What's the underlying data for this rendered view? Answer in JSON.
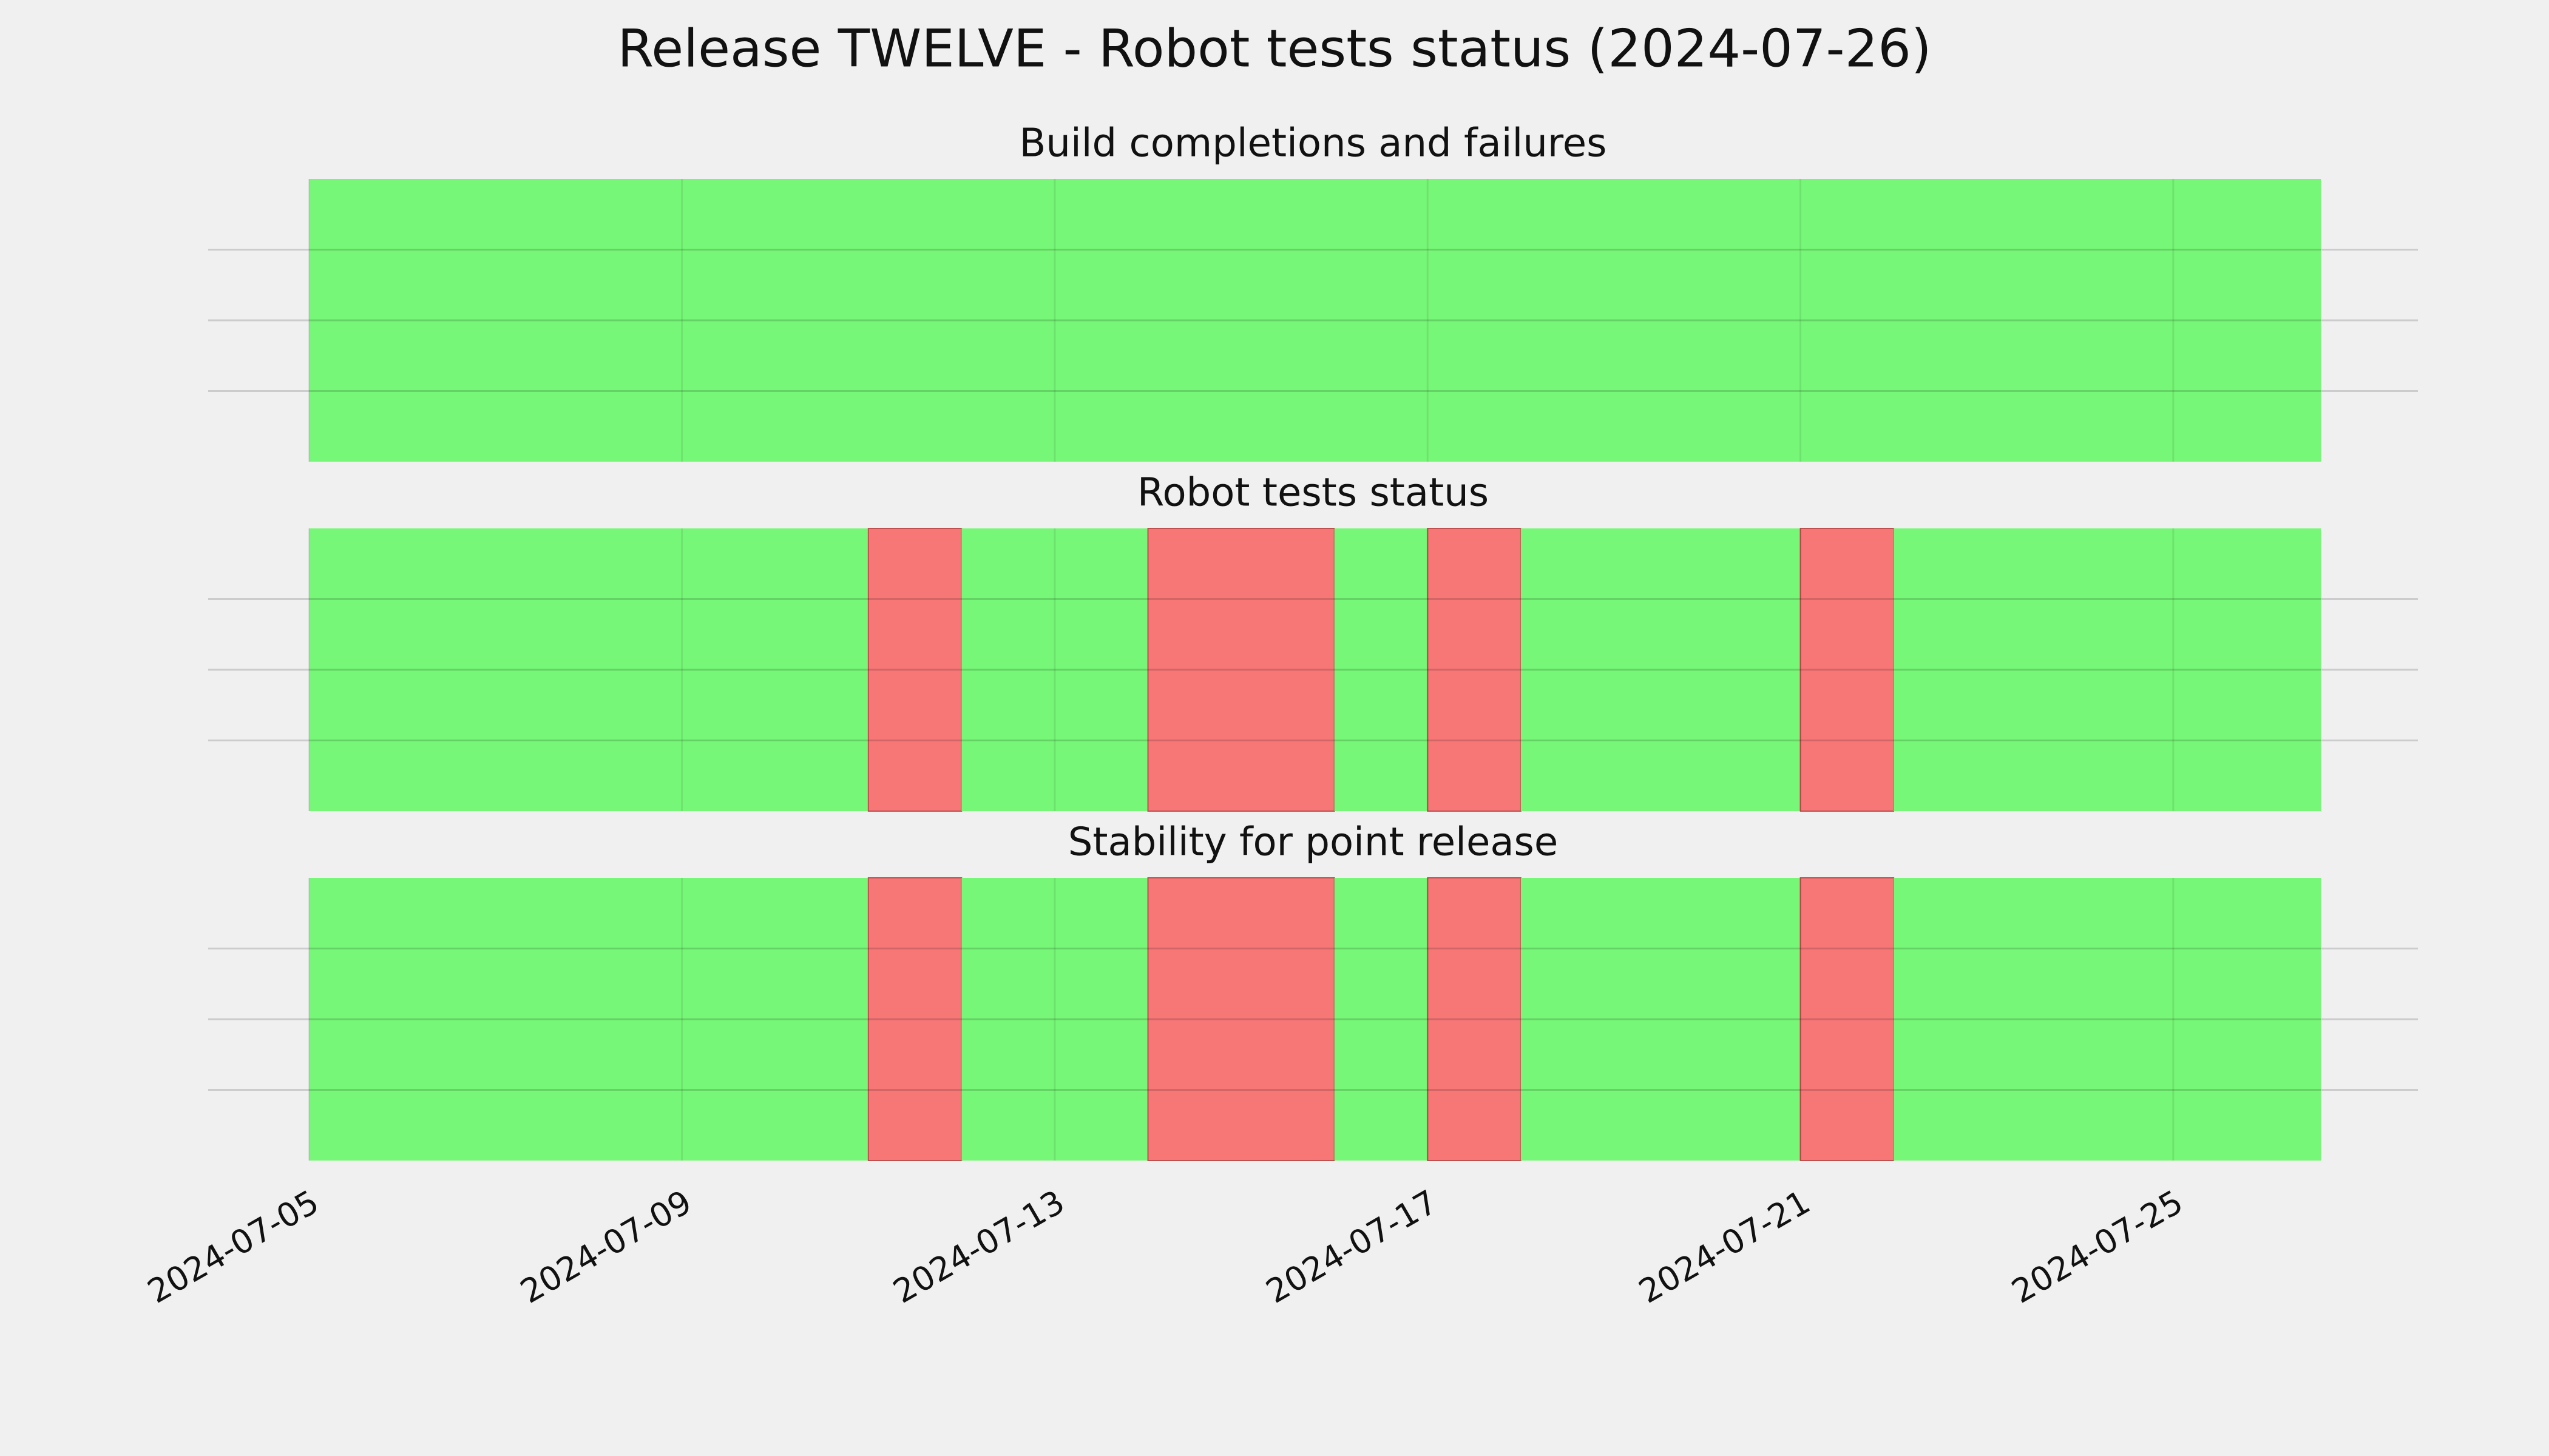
{
  "title": "Release TWELVE - Robot tests status (2024-07-26)",
  "chart_data": [
    {
      "type": "timeline",
      "title": "Build completions and failures",
      "bins": [
        "2024-07-05",
        "2024-07-26T14:00:00Z"
      ],
      "status": [
        "pass"
      ],
      "colors": {
        "pass": "#77f777",
        "fail": "#f77777"
      },
      "xlim": [
        "2024-07-03T22:00:00Z",
        "2024-07-27T15:00:00Z"
      ],
      "ylim": [
        0,
        1
      ],
      "yticks": [
        0.25,
        0.5,
        0.75
      ],
      "grid": true
    },
    {
      "type": "timeline",
      "title": "Robot tests status",
      "bins": [
        "2024-07-05",
        "2024-07-11",
        "2024-07-12",
        "2024-07-14",
        "2024-07-16",
        "2024-07-17",
        "2024-07-18",
        "2024-07-21",
        "2024-07-22",
        "2024-07-26T14:00:00Z"
      ],
      "status": [
        "pass",
        "fail",
        "pass",
        "fail",
        "pass",
        "fail",
        "pass",
        "fail",
        "pass"
      ],
      "colors": {
        "pass": "#77f777",
        "fail": "#f77777"
      },
      "xlim": [
        "2024-07-03T22:00:00Z",
        "2024-07-27T15:00:00Z"
      ],
      "ylim": [
        0,
        1
      ],
      "yticks": [
        0.25,
        0.5,
        0.75
      ],
      "grid": true
    },
    {
      "type": "timeline",
      "title": "Stability for point release",
      "bins": [
        "2024-07-05",
        "2024-07-11",
        "2024-07-12",
        "2024-07-14",
        "2024-07-16",
        "2024-07-17",
        "2024-07-18",
        "2024-07-21",
        "2024-07-22",
        "2024-07-26T14:00:00Z"
      ],
      "status": [
        "pass",
        "fail",
        "pass",
        "fail",
        "pass",
        "fail",
        "pass",
        "fail",
        "pass"
      ],
      "colors": {
        "pass": "#77f777",
        "fail": "#f77777"
      },
      "xlim": [
        "2024-07-03T22:00:00Z",
        "2024-07-27T15:00:00Z"
      ],
      "ylim": [
        0,
        1
      ],
      "yticks": [
        0.25,
        0.5,
        0.75
      ],
      "grid": true,
      "xticks": [
        "2024-07-05",
        "2024-07-09",
        "2024-07-13",
        "2024-07-17",
        "2024-07-21",
        "2024-07-25"
      ]
    }
  ]
}
